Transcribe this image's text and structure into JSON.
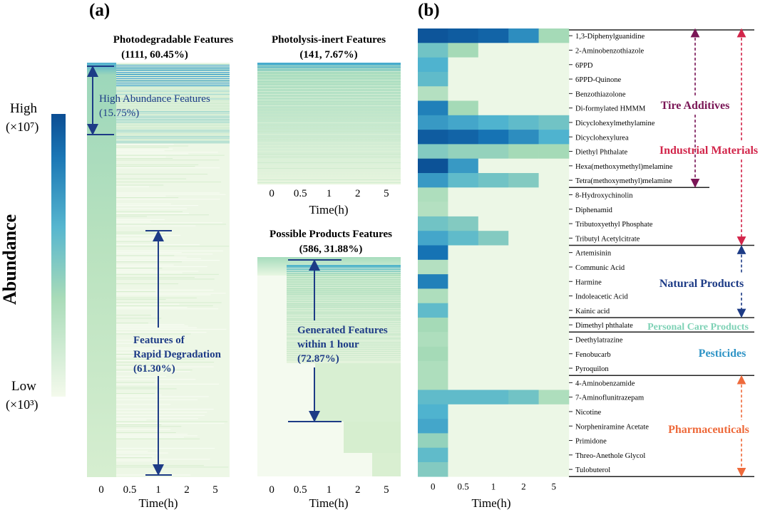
{
  "panel_labels": {
    "a": "(a)",
    "b": "(b)"
  },
  "colorbar": {
    "title": "Abundance",
    "high": "High",
    "high_unit": "(×10⁷)",
    "low": "Low",
    "low_unit": "(×10³)",
    "colors": [
      "#f2f9ea",
      "#a5dab7",
      "#4fb3cf",
      "#1673b4",
      "#0b4d93"
    ]
  },
  "panel_a": {
    "photodegradable": {
      "title": "Photodegradable Features",
      "count": "(1111, 60.45%)",
      "ann_high": [
        "High Abundance Features",
        "(15.75%)"
      ],
      "ann_rapid": [
        "Features of",
        "Rapid Degradation",
        "(61.30%)"
      ]
    },
    "photolysis_inert": {
      "title": "Photolysis-inert Features",
      "count": "(141, 7.67%)"
    },
    "possible_products": {
      "title": "Possible Products Features",
      "count": "(586,  31.88%)",
      "ann_generated": [
        "Generated Features",
        "within 1 hour",
        "(72.87%)"
      ]
    },
    "time_ticks": [
      "0",
      "0.5",
      "1",
      "2",
      "5"
    ],
    "xlabel": "Time(h)"
  },
  "chart_data": {
    "type": "heatmap",
    "title": "",
    "xlabel": "Time(h)",
    "x": [
      "0",
      "0.5",
      "1",
      "2",
      "5"
    ],
    "scale": "relative abundance 0 (low) to 1 (high)",
    "rows": [
      {
        "name": "1,3-Diphenylguanidine",
        "values": [
          0.95,
          0.9,
          0.85,
          0.65,
          0.25
        ]
      },
      {
        "name": "2-Aminobenzothiazole",
        "values": [
          0.4,
          0.25,
          0.02,
          0.02,
          0.02
        ]
      },
      {
        "name": "6PPD",
        "values": [
          0.5,
          0.02,
          0.02,
          0.02,
          0.02
        ]
      },
      {
        "name": "6PPD-Quinone",
        "values": [
          0.45,
          0.02,
          0.02,
          0.02,
          0.02
        ]
      },
      {
        "name": "Benzothiazolone",
        "values": [
          0.2,
          0.02,
          0.02,
          0.02,
          0.02
        ]
      },
      {
        "name": "Di-formylated HMMM",
        "values": [
          0.7,
          0.25,
          0.02,
          0.02,
          0.02
        ]
      },
      {
        "name": "Dicyclohexylmethylamine",
        "values": [
          0.6,
          0.55,
          0.5,
          0.45,
          0.4
        ]
      },
      {
        "name": "Dicyclohexylurea",
        "values": [
          0.9,
          0.85,
          0.75,
          0.65,
          0.5
        ]
      },
      {
        "name": "Diethyl Phthalate",
        "values": [
          0.35,
          0.3,
          0.3,
          0.25,
          0.25
        ]
      },
      {
        "name": "Hexa(methoxymethyl)melamine",
        "values": [
          0.97,
          0.6,
          0.02,
          0.02,
          0.02
        ]
      },
      {
        "name": "Tetra(methoxymethyl)melamine",
        "values": [
          0.6,
          0.45,
          0.4,
          0.35,
          0.02
        ]
      },
      {
        "name": "8-Hydroxychinolin",
        "values": [
          0.22,
          0.02,
          0.02,
          0.02,
          0.02
        ]
      },
      {
        "name": "Diphenamid",
        "values": [
          0.2,
          0.02,
          0.02,
          0.02,
          0.02
        ]
      },
      {
        "name": "Tributoxyethyl Phosphate",
        "values": [
          0.4,
          0.35,
          0.02,
          0.02,
          0.02
        ]
      },
      {
        "name": "Tributyl Acetylcitrate",
        "values": [
          0.55,
          0.45,
          0.35,
          0.02,
          0.02
        ]
      },
      {
        "name": "Artemisinin",
        "values": [
          0.75,
          0.02,
          0.02,
          0.02,
          0.02
        ]
      },
      {
        "name": "Communic Acid",
        "values": [
          0.2,
          0.02,
          0.02,
          0.02,
          0.02
        ]
      },
      {
        "name": "Harmine",
        "values": [
          0.7,
          0.02,
          0.02,
          0.02,
          0.02
        ]
      },
      {
        "name": "Indoleacetic Acid",
        "values": [
          0.22,
          0.02,
          0.02,
          0.02,
          0.02
        ]
      },
      {
        "name": "Kainic acid",
        "values": [
          0.45,
          0.02,
          0.02,
          0.02,
          0.02
        ]
      },
      {
        "name": "Dimethyl phthalate",
        "values": [
          0.25,
          0.02,
          0.02,
          0.02,
          0.02
        ]
      },
      {
        "name": "Deethylatrazine",
        "values": [
          0.22,
          0.02,
          0.02,
          0.02,
          0.02
        ]
      },
      {
        "name": "Fenobucarb",
        "values": [
          0.25,
          0.02,
          0.02,
          0.02,
          0.02
        ]
      },
      {
        "name": "Pyroquilon",
        "values": [
          0.22,
          0.02,
          0.02,
          0.02,
          0.02
        ]
      },
      {
        "name": "4-Aminobenzamide",
        "values": [
          0.22,
          0.02,
          0.02,
          0.02,
          0.02
        ]
      },
      {
        "name": "7-Aminoflunitrazepam",
        "values": [
          0.45,
          0.45,
          0.45,
          0.4,
          0.22
        ]
      },
      {
        "name": "Nicotine",
        "values": [
          0.5,
          0.02,
          0.02,
          0.02,
          0.02
        ]
      },
      {
        "name": "Norpheniramine Acetate",
        "values": [
          0.55,
          0.02,
          0.02,
          0.02,
          0.02
        ]
      },
      {
        "name": "Primidone",
        "values": [
          0.3,
          0.02,
          0.02,
          0.02,
          0.02
        ]
      },
      {
        "name": "Threo-Anethole Glycol",
        "values": [
          0.45,
          0.02,
          0.02,
          0.02,
          0.02
        ]
      },
      {
        "name": "Tulobuterol",
        "values": [
          0.35,
          0.02,
          0.02,
          0.02,
          0.02
        ]
      }
    ],
    "groups": [
      {
        "label": "Tire Additives",
        "start": 0,
        "end": 10,
        "color": "#7a1656"
      },
      {
        "label": "Industrial Materials",
        "start": 0,
        "end": 14,
        "color": "#d2254a"
      },
      {
        "label": "Natural Products",
        "start": 15,
        "end": 19,
        "color": "#1d3b86"
      },
      {
        "label": "Personal Care Products",
        "start": 20,
        "end": 20,
        "color": "#7fd2b6"
      },
      {
        "label": "Pesticides",
        "start": 21,
        "end": 23,
        "color": "#2f94c6"
      },
      {
        "label": "Pharmaceuticals",
        "start": 24,
        "end": 30,
        "color": "#ee6a3b"
      }
    ]
  }
}
